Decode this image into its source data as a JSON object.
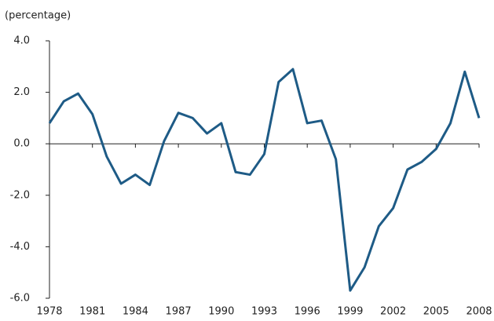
{
  "chart_data": {
    "type": "line",
    "y_label": "(percentage)",
    "x": [
      1978,
      1979,
      1980,
      1981,
      1982,
      1983,
      1984,
      1985,
      1986,
      1987,
      1988,
      1989,
      1990,
      1991,
      1992,
      1993,
      1994,
      1995,
      1996,
      1997,
      1998,
      1999,
      2000,
      2001,
      2002,
      2003,
      2004,
      2005,
      2006,
      2007,
      2008
    ],
    "series": [
      {
        "color": "#1e5b86",
        "values": [
          0.8,
          1.65,
          1.95,
          1.15,
          -0.5,
          -1.55,
          -1.2,
          -1.6,
          0.1,
          1.2,
          1.0,
          0.4,
          0.8,
          -1.1,
          -1.2,
          -0.4,
          2.4,
          2.9,
          0.8,
          0.9,
          -0.6,
          -5.7,
          -4.8,
          -3.2,
          -2.5,
          -1.0,
          -0.7,
          -0.2,
          0.8,
          2.8,
          1.0
        ]
      }
    ],
    "xlim": [
      1978,
      2008
    ],
    "xticks": [
      1978,
      1981,
      1984,
      1987,
      1990,
      1993,
      1996,
      1999,
      2002,
      2005,
      2008
    ],
    "ylim": [
      -6,
      4
    ],
    "yticks": [
      {
        "value": -6,
        "label": "-6.0"
      },
      {
        "value": -4,
        "label": "-4.0"
      },
      {
        "value": -2,
        "label": "-2.0"
      },
      {
        "value": 0,
        "label": "0.0"
      },
      {
        "value": 2,
        "label": "2.0"
      },
      {
        "value": 4,
        "label": "4.0"
      }
    ]
  }
}
